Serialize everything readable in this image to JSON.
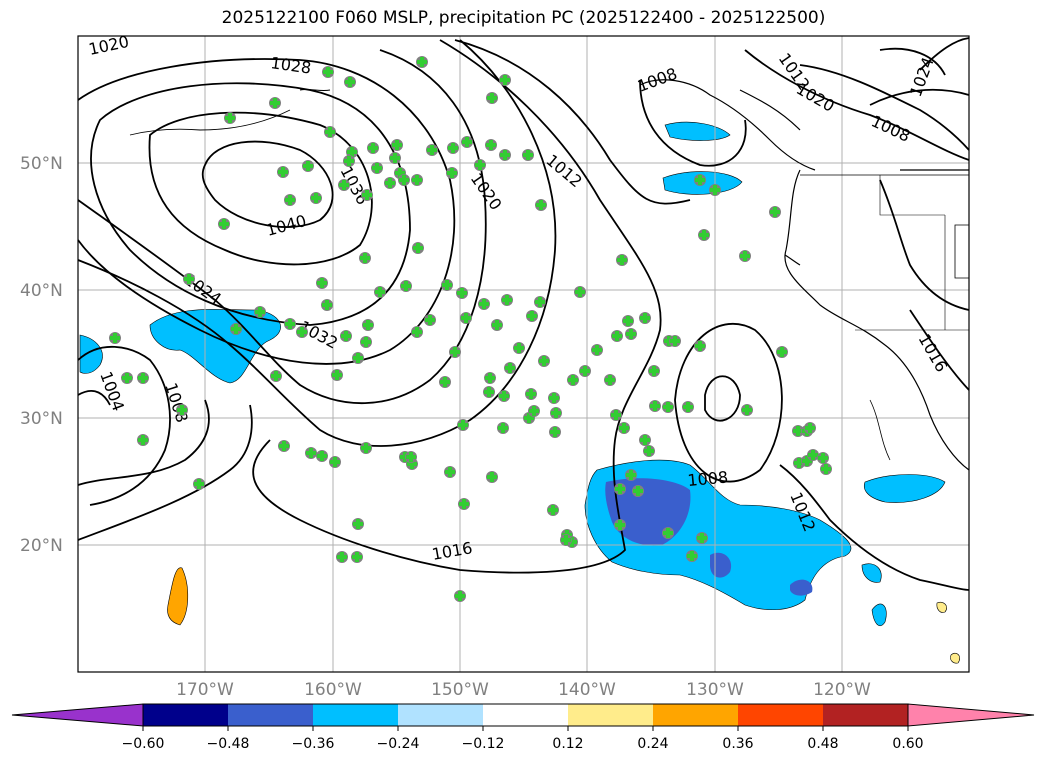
{
  "title": "2025122100 F060 MSLP, precipitation PC (2025122400 - 2025122500)",
  "lat_labels": [
    "50°N",
    "40°N",
    "30°N",
    "20°N"
  ],
  "lon_labels": [
    "170°W",
    "160°W",
    "150°W",
    "140°W",
    "130°W",
    "120°W"
  ],
  "contour_labels": [
    "1020",
    "1028",
    "1036",
    "1040",
    "1024",
    "1032",
    "1004",
    "1008",
    "1016",
    "1020",
    "1012",
    "1008",
    "1012",
    "1020",
    "1024",
    "1008",
    "1016",
    "1008",
    "1012"
  ],
  "colorbar": {
    "ticks": [
      "−0.60",
      "−0.48",
      "−0.36",
      "−0.24",
      "−0.12",
      "0.12",
      "0.24",
      "0.36",
      "0.48",
      "0.60"
    ],
    "colors": [
      "#9932CC",
      "#00008B",
      "#3A5FCD",
      "#00BFFF",
      "#B0E2FF",
      "#FFFFFF",
      "#FFEC8B",
      "#FFA500",
      "#FF4500",
      "#B22222",
      "#FF82AB"
    ]
  },
  "colors": {
    "observation_marker": "#32CD32",
    "observation_marker_edge": "#808080",
    "grid": "#b0b0b0",
    "contour": "#000000"
  }
}
